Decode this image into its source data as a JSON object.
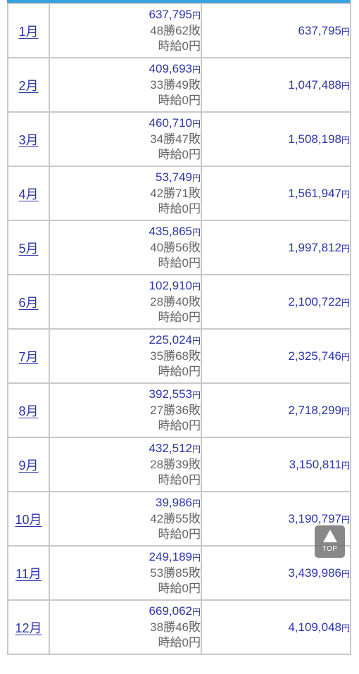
{
  "currency_suffix": "円",
  "colors": {
    "accent_link": "#2b35a8",
    "top_strip": "#3aa1e0",
    "muted_text": "#666666",
    "grid": "#c9c9c9"
  },
  "rows": [
    {
      "month": "1月",
      "amount": "637,795",
      "record": "48勝62敗",
      "hourly": "時給0円",
      "total": "637,795"
    },
    {
      "month": "2月",
      "amount": "409,693",
      "record": "33勝49敗",
      "hourly": "時給0円",
      "total": "1,047,488"
    },
    {
      "month": "3月",
      "amount": "460,710",
      "record": "34勝47敗",
      "hourly": "時給0円",
      "total": "1,508,198"
    },
    {
      "month": "4月",
      "amount": "53,749",
      "record": "42勝71敗",
      "hourly": "時給0円",
      "total": "1,561,947"
    },
    {
      "month": "5月",
      "amount": "435,865",
      "record": "40勝56敗",
      "hourly": "時給0円",
      "total": "1,997,812"
    },
    {
      "month": "6月",
      "amount": "102,910",
      "record": "28勝40敗",
      "hourly": "時給0円",
      "total": "2,100,722"
    },
    {
      "month": "7月",
      "amount": "225,024",
      "record": "35勝68敗",
      "hourly": "時給0円",
      "total": "2,325,746"
    },
    {
      "month": "8月",
      "amount": "392,553",
      "record": "27勝36敗",
      "hourly": "時給0円",
      "total": "2,718,299"
    },
    {
      "month": "9月",
      "amount": "432,512",
      "record": "28勝39敗",
      "hourly": "時給0円",
      "total": "3,150,811"
    },
    {
      "month": "10月",
      "amount": "39,986",
      "record": "42勝55敗",
      "hourly": "時給0円",
      "total": "3,190,797"
    },
    {
      "month": "11月",
      "amount": "249,189",
      "record": "53勝85敗",
      "hourly": "時給0円",
      "total": "3,439,986"
    },
    {
      "month": "12月",
      "amount": "669,062",
      "record": "38勝46敗",
      "hourly": "時給0円",
      "total": "4,109,048"
    }
  ],
  "top_button": {
    "label": "TOP",
    "icon": "up-triangle-icon"
  }
}
